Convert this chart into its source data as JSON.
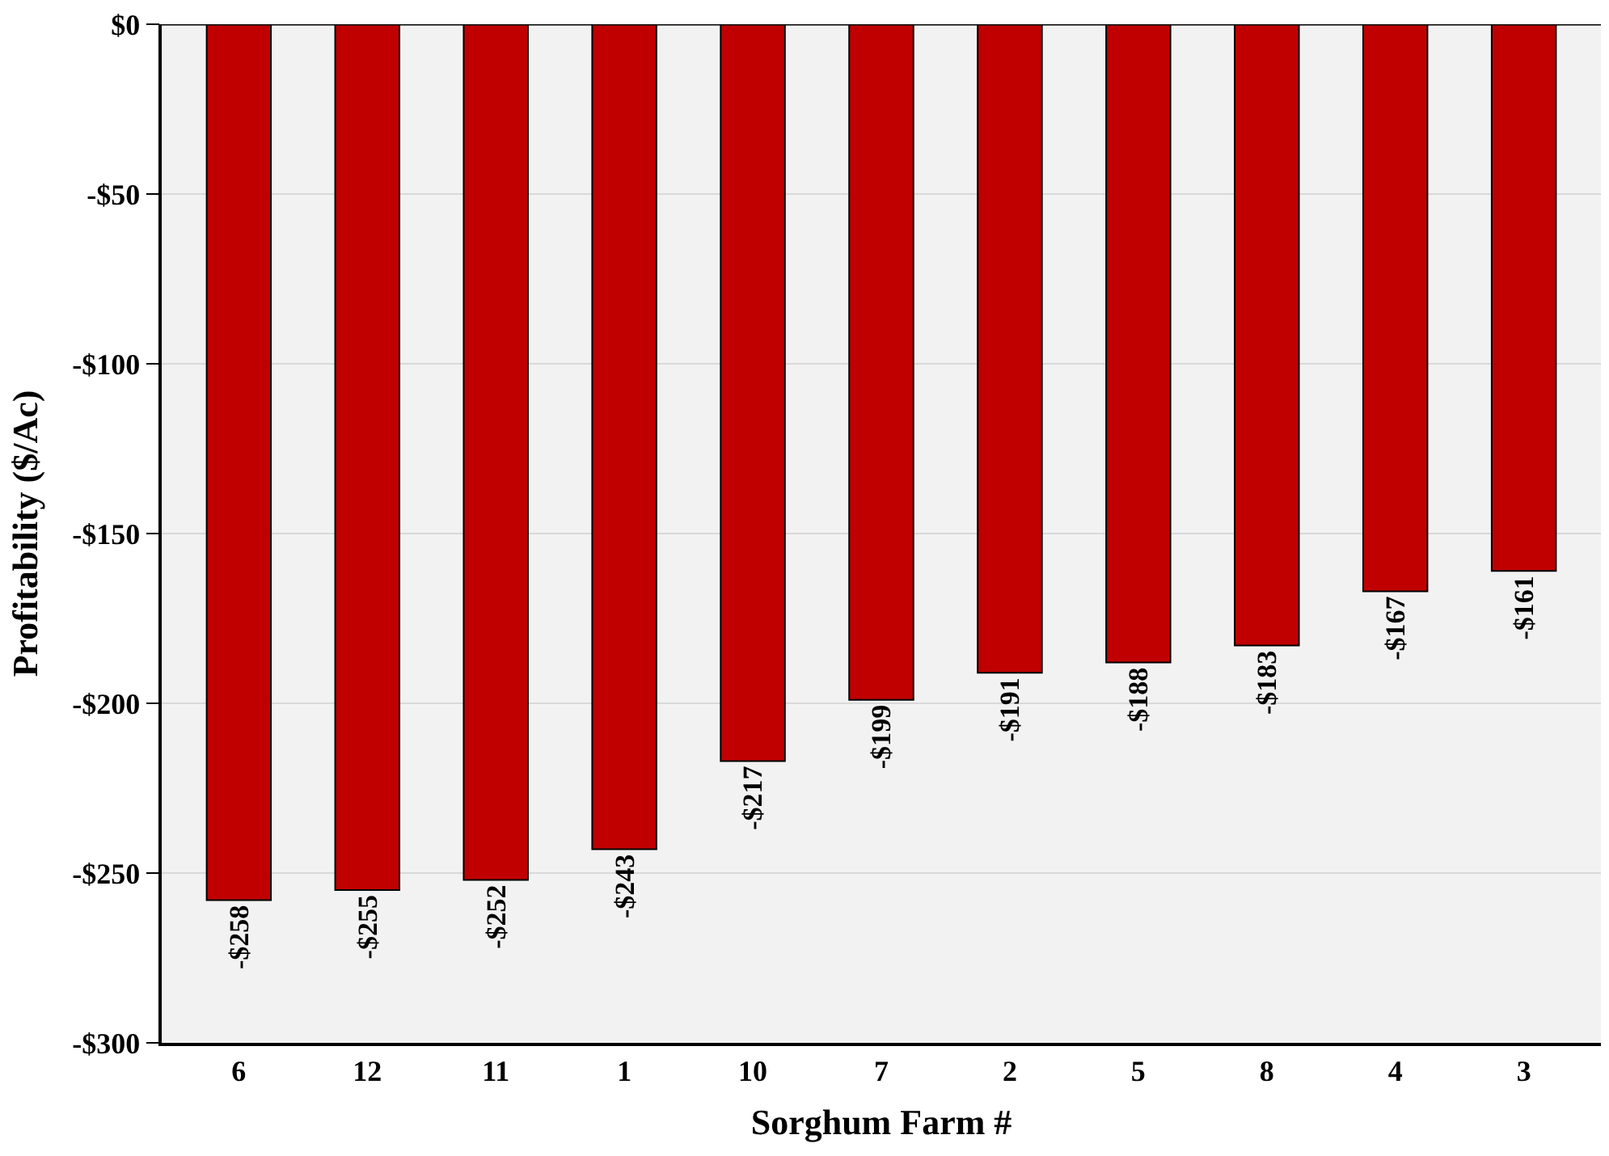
{
  "chart_data": {
    "type": "bar",
    "xlabel": "Sorghum Farm #",
    "ylabel": "Profitability ($/Ac)",
    "categories": [
      "6",
      "12",
      "11",
      "1",
      "10",
      "7",
      "2",
      "5",
      "8",
      "4",
      "3"
    ],
    "values": [
      -258,
      -255,
      -252,
      -243,
      -217,
      -199,
      -191,
      -188,
      -183,
      -167,
      -161
    ],
    "value_labels": [
      "-$258",
      "-$255",
      "-$252",
      "-$243",
      "-$217",
      "-$199",
      "-$191",
      "-$188",
      "-$183",
      "-$167",
      "-$161"
    ],
    "color": "#c00000",
    "ylim": [
      -300,
      0
    ],
    "yticks": [
      {
        "value": -300,
        "label": "-$300"
      },
      {
        "value": -250,
        "label": "-$250"
      },
      {
        "value": -200,
        "label": "-$200"
      },
      {
        "value": -150,
        "label": "-$150"
      },
      {
        "value": -100,
        "label": "-$100"
      },
      {
        "value": -50,
        "label": "-$50"
      },
      {
        "value": 0,
        "label": "$0"
      }
    ],
    "grid": "y"
  }
}
